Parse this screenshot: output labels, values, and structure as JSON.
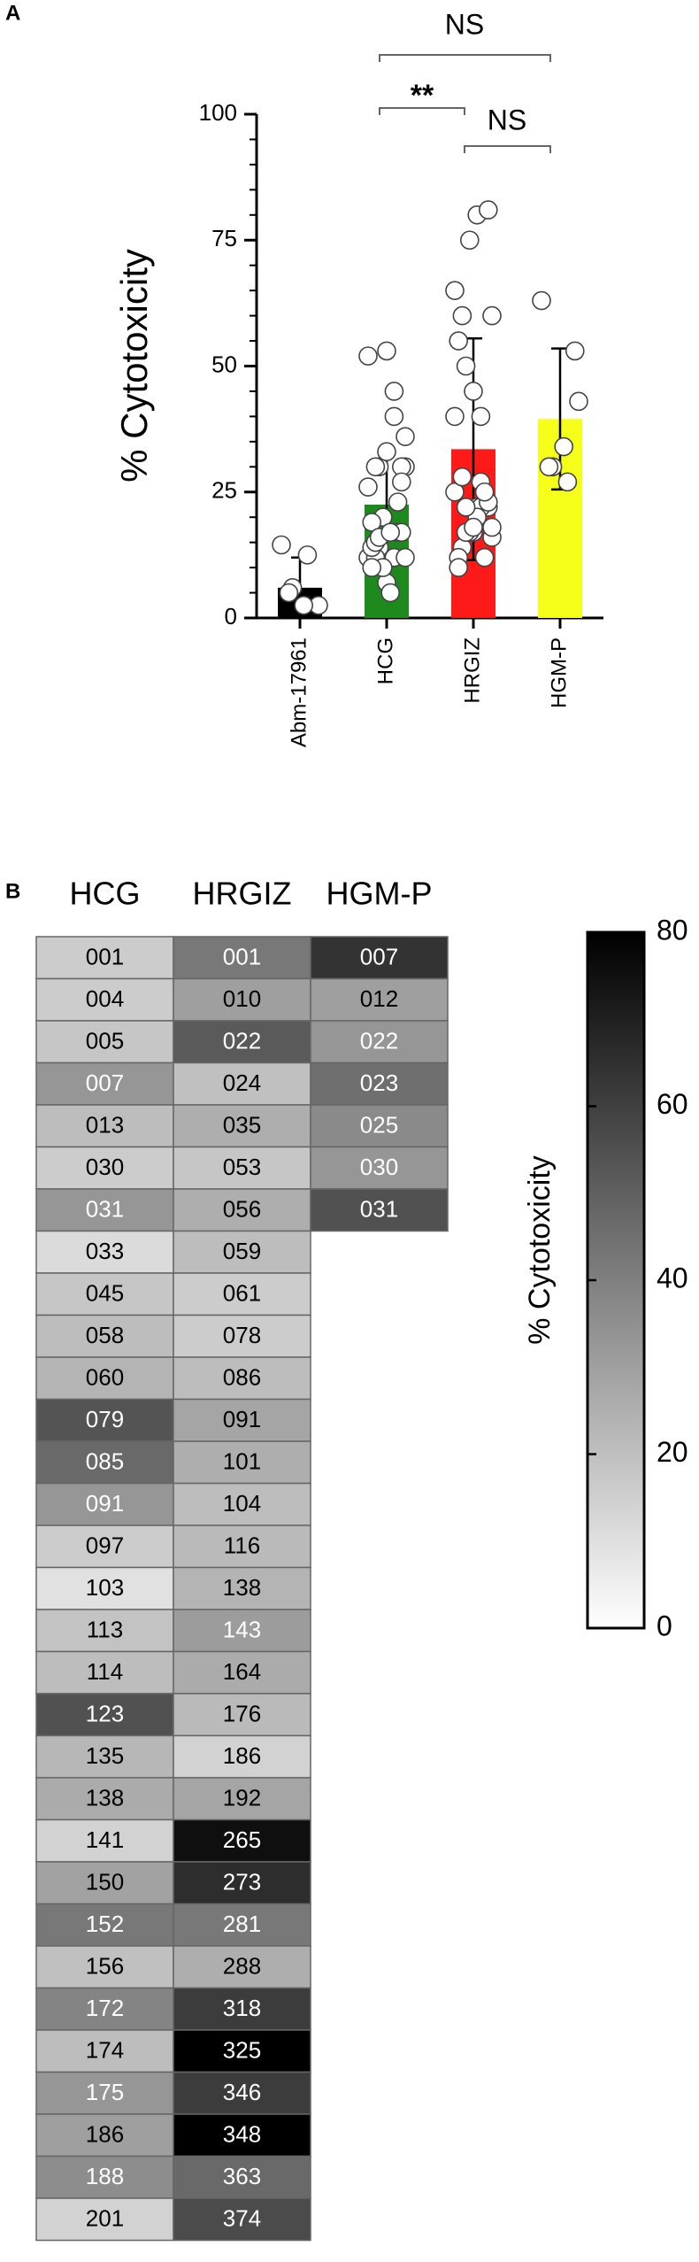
{
  "chart_data": [
    {
      "type": "bar",
      "panel": "A",
      "ylabel": "% Cytotoxicity",
      "categories": [
        "Abm-17961",
        "HCG",
        "HRGIZ",
        "HGM-P"
      ],
      "values": [
        6,
        22.5,
        33.5,
        39.5
      ],
      "errors": [
        6,
        11,
        22,
        14
      ],
      "colors": [
        "#000000",
        "#1e8a1e",
        "#ff1a1a",
        "#f5ff1a"
      ],
      "points": [
        [
          14.5,
          12.5,
          6,
          2.5,
          2.5,
          5
        ],
        [
          12,
          12,
          14,
          30,
          17,
          12,
          30,
          7,
          14,
          17,
          20,
          52,
          45,
          30,
          12,
          5,
          15,
          17,
          53,
          19,
          23,
          10,
          26,
          40,
          16,
          36,
          17,
          30,
          27,
          33,
          10
        ],
        [
          40,
          27,
          50,
          16,
          22,
          14,
          22,
          17,
          12,
          12,
          17,
          25,
          22,
          17,
          18,
          20,
          28,
          23,
          18,
          10,
          25,
          75,
          65,
          40,
          22,
          60,
          80,
          60,
          81,
          45,
          55
        ],
        [
          63,
          27,
          30,
          43,
          34,
          30,
          53
        ]
      ],
      "ylim": [
        0,
        100
      ],
      "yticks": [
        0,
        25,
        50,
        75,
        100
      ],
      "annotations": [
        "NS",
        "**",
        "NS"
      ]
    },
    {
      "type": "heatmap",
      "panel": "B",
      "columns": [
        {
          "name": "HCG",
          "labels": [
            "001",
            "004",
            "005",
            "007",
            "013",
            "030",
            "031",
            "033",
            "045",
            "058",
            "060",
            "079",
            "085",
            "091",
            "097",
            "103",
            "113",
            "114",
            "123",
            "135",
            "138",
            "141",
            "150",
            "152",
            "156",
            "172",
            "174",
            "175",
            "186",
            "188",
            "201"
          ],
          "values": [
            12,
            12,
            14,
            30,
            17,
            12,
            30,
            7,
            14,
            17,
            20,
            52,
            45,
            30,
            12,
            5,
            15,
            17,
            53,
            19,
            23,
            10,
            26,
            40,
            16,
            36,
            17,
            30,
            27,
            33,
            10
          ]
        },
        {
          "name": "HRGIZ",
          "labels": [
            "001",
            "010",
            "022",
            "024",
            "035",
            "053",
            "056",
            "059",
            "061",
            "078",
            "086",
            "091",
            "101",
            "104",
            "116",
            "138",
            "143",
            "164",
            "176",
            "186",
            "192",
            "265",
            "273",
            "281",
            "288",
            "318",
            "325",
            "346",
            "348",
            "363",
            "374"
          ],
          "values": [
            40,
            27,
            50,
            16,
            22,
            14,
            22,
            17,
            12,
            12,
            17,
            25,
            22,
            17,
            18,
            20,
            28,
            23,
            18,
            10,
            25,
            75,
            65,
            40,
            22,
            60,
            80,
            60,
            81,
            45,
            55
          ]
        },
        {
          "name": "HGM-P",
          "labels": [
            "007",
            "012",
            "022",
            "023",
            "025",
            "030",
            "031"
          ],
          "values": [
            63,
            27,
            30,
            43,
            34,
            30,
            53
          ]
        }
      ],
      "colorbar": {
        "label": "% Cytotoxicity",
        "lim": [
          0,
          80
        ],
        "ticks": [
          0,
          20,
          40,
          60,
          80
        ]
      }
    }
  ]
}
